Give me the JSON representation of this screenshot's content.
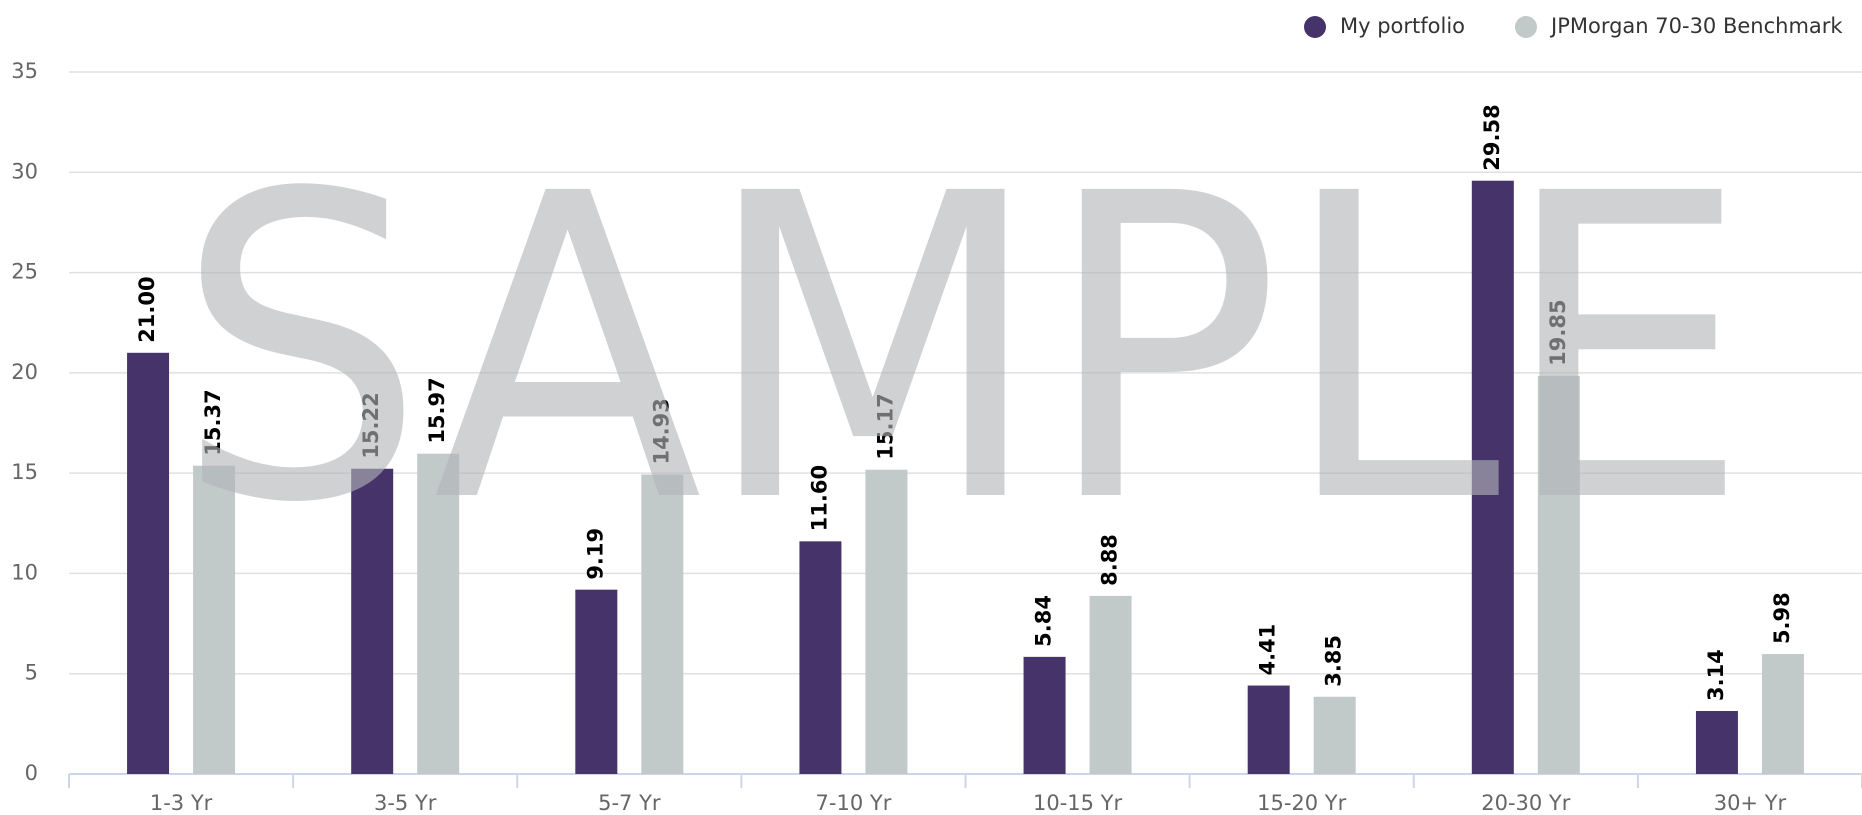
{
  "chart_data": {
    "type": "bar",
    "watermark": "SAMPLE",
    "categories": [
      "1-3 Yr",
      "3-5 Yr",
      "5-7 Yr",
      "7-10 Yr",
      "10-15 Yr",
      "15-20 Yr",
      "20-30 Yr",
      "30+ Yr"
    ],
    "series": [
      {
        "name": "My portfolio",
        "color": "#45336a",
        "values": [
          21.0,
          15.22,
          9.19,
          11.6,
          5.84,
          4.41,
          29.58,
          3.14
        ],
        "value_labels": [
          "21.00",
          "15.22",
          "9.19",
          "11.60",
          "5.84",
          "4.41",
          "29.58",
          "3.14"
        ]
      },
      {
        "name": "JPMorgan 70-30 Benchmark",
        "color": "#c1c9c9",
        "values": [
          15.37,
          15.97,
          14.93,
          15.17,
          8.88,
          3.85,
          19.85,
          5.98
        ],
        "value_labels": [
          "15.37",
          "15.97",
          "14.93",
          "15.17",
          "8.88",
          "3.85",
          "19.85",
          "5.98"
        ]
      }
    ],
    "ylim": [
      0,
      35
    ],
    "yticks": [
      0,
      5,
      10,
      15,
      20,
      25,
      30,
      35
    ],
    "grid": true,
    "legend": "top-right"
  }
}
